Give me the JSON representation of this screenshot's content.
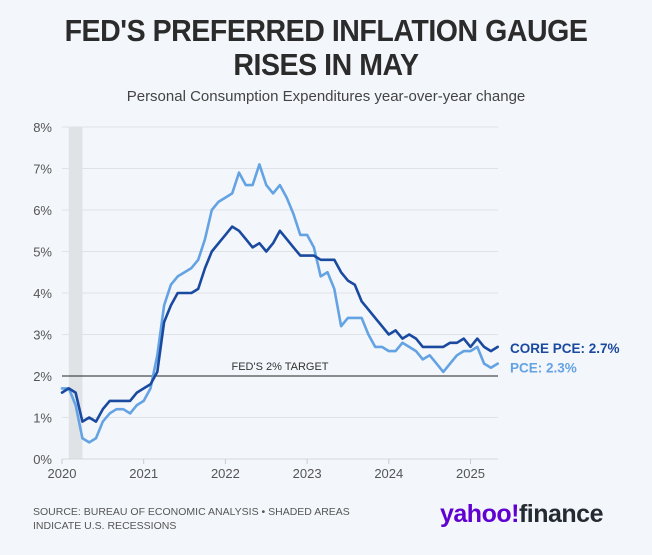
{
  "header": {
    "title_line1": "FED'S PREFERRED INFLATION GAUGE",
    "title_line2": "RISES IN MAY",
    "subtitle": "Personal Consumption Expenditures year-over-year change"
  },
  "footer": {
    "source_line1": "SOURCE: BUREAU OF ECONOMIC ANALYSIS • SHADED AREAS",
    "source_line2": "INDICATE U.S. RECESSIONS"
  },
  "logo": {
    "part1": "yahoo",
    "bang": "!",
    "part2": "finance"
  },
  "colors": {
    "core_pce": "#1a4aa0",
    "pce": "#64a3e3",
    "target": "#222222",
    "recession": "#e0e3e6"
  },
  "chart_data": {
    "type": "line",
    "title": "FED'S PREFERRED INFLATION GAUGE RISES IN MAY",
    "subtitle": "Personal Consumption Expenditures year-over-year change",
    "xlabel": "",
    "ylabel": "",
    "x_start": "2020-01",
    "x_end": "2025-05",
    "frequency": "monthly",
    "xticks": [
      "2020",
      "2021",
      "2022",
      "2023",
      "2024",
      "2025"
    ],
    "yticks": [
      "0%",
      "1%",
      "2%",
      "3%",
      "4%",
      "5%",
      "6%",
      "7%",
      "8%"
    ],
    "ylim": [
      0,
      8
    ],
    "grid": true,
    "recession": {
      "start": "2020-02",
      "end": "2020-04",
      "label": "Shaded areas indicate U.S. recessions"
    },
    "reference_line": {
      "value": 2,
      "label": "FED'S 2% TARGET"
    },
    "series": [
      {
        "name": "Core PCE",
        "end_label": "CORE PCE: 2.7%",
        "values": [
          1.6,
          1.7,
          1.6,
          0.9,
          1.0,
          0.9,
          1.2,
          1.4,
          1.4,
          1.4,
          1.4,
          1.6,
          1.7,
          1.8,
          2.1,
          3.3,
          3.7,
          4.0,
          4.0,
          4.0,
          4.1,
          4.6,
          5.0,
          5.2,
          5.4,
          5.6,
          5.5,
          5.3,
          5.1,
          5.2,
          5.0,
          5.2,
          5.5,
          5.3,
          5.1,
          4.9,
          4.9,
          4.9,
          4.8,
          4.8,
          4.8,
          4.5,
          4.3,
          4.2,
          3.8,
          3.6,
          3.4,
          3.2,
          3.0,
          3.1,
          2.9,
          3.0,
          2.9,
          2.7,
          2.7,
          2.7,
          2.7,
          2.8,
          2.8,
          2.9,
          2.7,
          2.9,
          2.7,
          2.6,
          2.7
        ]
      },
      {
        "name": "PCE",
        "end_label": "PCE: 2.3%",
        "values": [
          1.7,
          1.7,
          1.3,
          0.5,
          0.4,
          0.5,
          0.9,
          1.1,
          1.2,
          1.2,
          1.1,
          1.3,
          1.4,
          1.7,
          2.5,
          3.7,
          4.2,
          4.4,
          4.5,
          4.6,
          4.8,
          5.3,
          6.0,
          6.2,
          6.3,
          6.4,
          6.9,
          6.6,
          6.6,
          7.1,
          6.6,
          6.4,
          6.6,
          6.3,
          5.9,
          5.4,
          5.4,
          5.1,
          4.4,
          4.5,
          4.1,
          3.2,
          3.4,
          3.4,
          3.4,
          3.0,
          2.7,
          2.7,
          2.6,
          2.6,
          2.8,
          2.7,
          2.6,
          2.4,
          2.5,
          2.3,
          2.1,
          2.3,
          2.5,
          2.6,
          2.6,
          2.7,
          2.3,
          2.2,
          2.3
        ]
      }
    ]
  }
}
